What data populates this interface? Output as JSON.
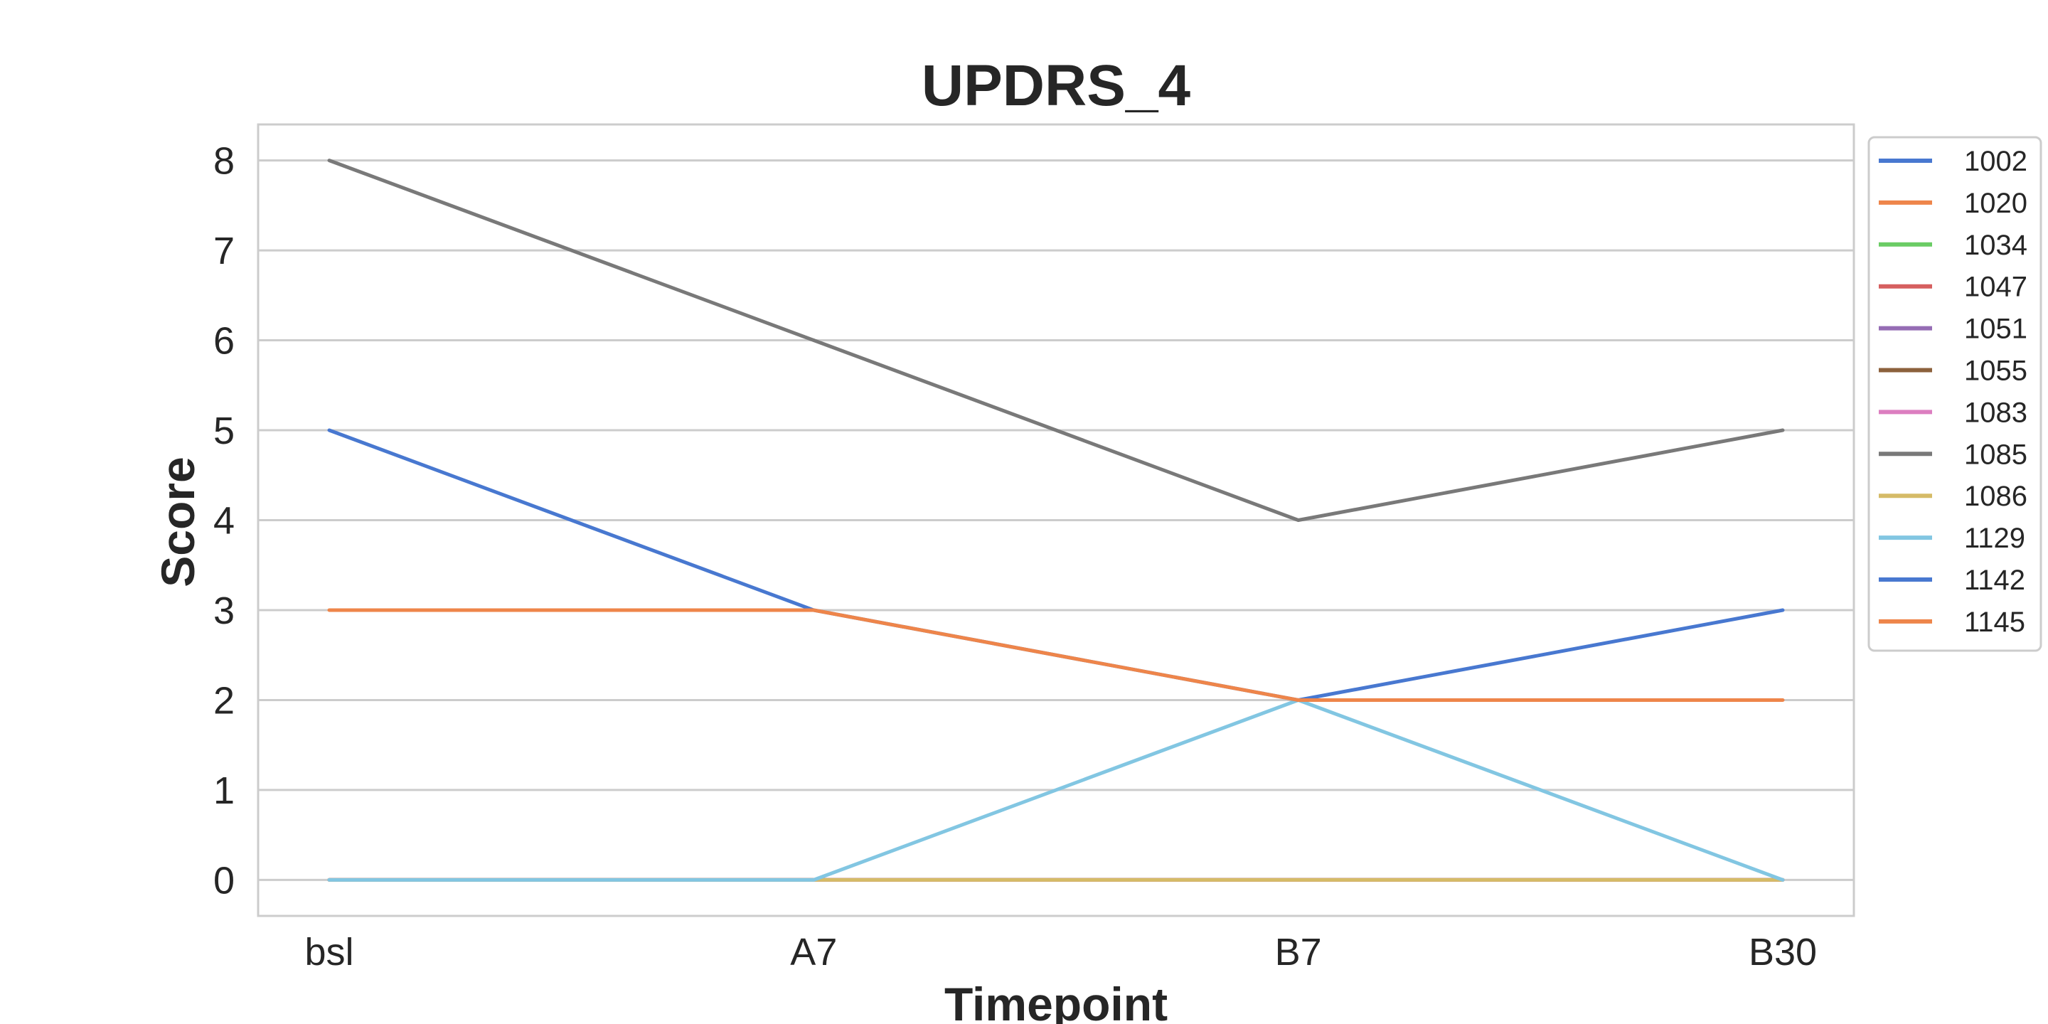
{
  "chart_data": {
    "type": "line",
    "title": "UPDRS_4",
    "xlabel": "Timepoint",
    "ylabel": "Score",
    "categories": [
      "bsl",
      "A7",
      "B7",
      "B30"
    ],
    "yticks": [
      0,
      1,
      2,
      3,
      4,
      5,
      6,
      7,
      8
    ],
    "ylim": [
      -0.4,
      8.4
    ],
    "grid": "horizontal",
    "legend_position": "right, outside plot",
    "series": [
      {
        "name": "1002",
        "color": "#4878d0",
        "values": [
          0,
          0,
          0,
          0
        ]
      },
      {
        "name": "1020",
        "color": "#ee854a",
        "values": [
          0,
          0,
          0,
          0
        ]
      },
      {
        "name": "1034",
        "color": "#6acc64",
        "values": [
          0,
          0,
          0,
          0
        ]
      },
      {
        "name": "1047",
        "color": "#d65f5f",
        "values": [
          0,
          0,
          0,
          0
        ]
      },
      {
        "name": "1051",
        "color": "#956cb4",
        "values": [
          0,
          0,
          0,
          0
        ]
      },
      {
        "name": "1055",
        "color": "#8c613c",
        "values": [
          0,
          0,
          0,
          0
        ]
      },
      {
        "name": "1083",
        "color": "#dc7ec0",
        "values": [
          0,
          0,
          0,
          0
        ]
      },
      {
        "name": "1085",
        "color": "#797979",
        "values": [
          8,
          6,
          4,
          5
        ]
      },
      {
        "name": "1086",
        "color": "#d5bb67",
        "values": [
          0,
          0,
          0,
          0
        ]
      },
      {
        "name": "1129",
        "color": "#82c6e2",
        "values": [
          0,
          0,
          2,
          0
        ]
      },
      {
        "name": "1142",
        "color": "#4878d0",
        "values": [
          5,
          3,
          2,
          3
        ]
      },
      {
        "name": "1145",
        "color": "#ee854a",
        "values": [
          3,
          3,
          2,
          2
        ]
      }
    ]
  }
}
